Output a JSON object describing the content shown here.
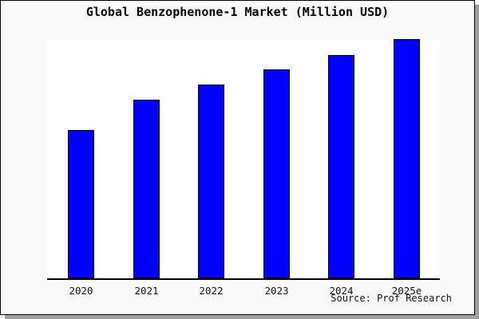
{
  "page": {
    "title": "Global Benzophenone-1 Market (Million USD)",
    "source_credit": "Source: Prof Research"
  },
  "colors": {
    "figure_background": "#f9f9f9",
    "plot_background": "#ffffff",
    "bar_fill": "#0000fe",
    "bar_border": "#000000",
    "axis": "#000000",
    "frame_border": "#000000",
    "shadow": "#a0a0a0",
    "text": "#000000"
  },
  "chart_data": {
    "type": "bar",
    "title": "Global Benzophenone-1 Market (Million USD)",
    "categories": [
      "2020",
      "2021",
      "2022",
      "2023",
      "2024",
      "2025e"
    ],
    "values": [
      62.0,
      74.7,
      81.0,
      87.3,
      93.3,
      100.0
    ],
    "value_note": "No y-axis labels shown in figure; values are relative bar heights with 2025e = 100",
    "xlabel": "",
    "ylabel": "",
    "ylim": [
      0,
      100
    ],
    "grid": false,
    "legend": false,
    "bar_color": "#0000fe",
    "source": "Source: Prof Research"
  }
}
